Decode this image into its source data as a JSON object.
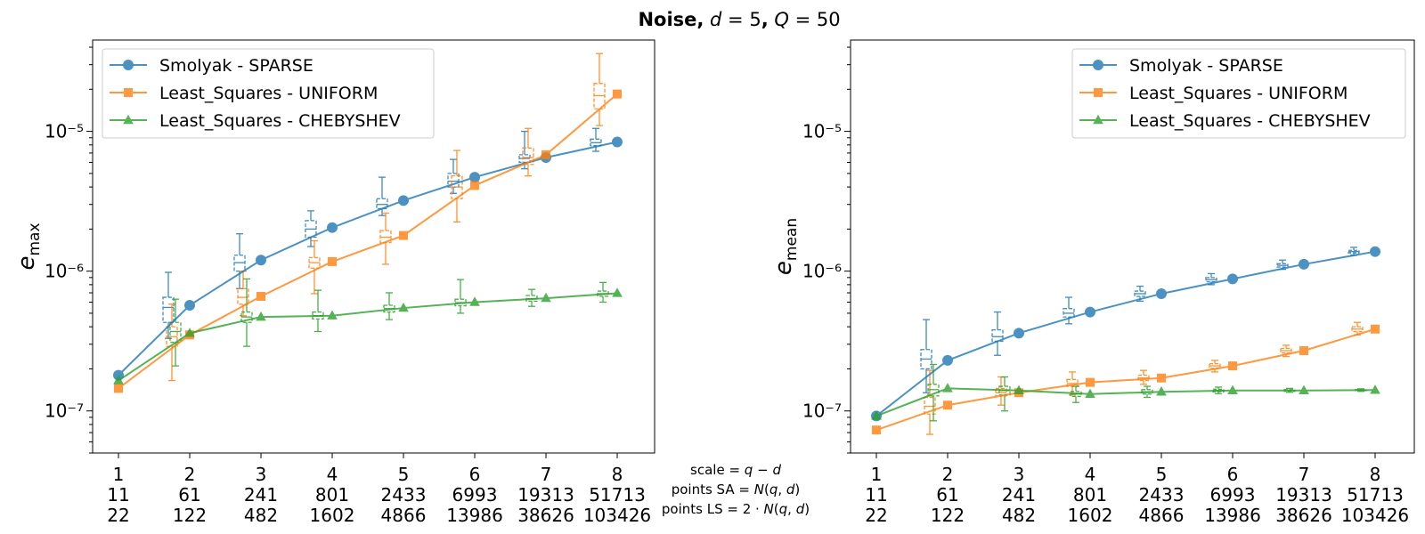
{
  "figure": {
    "title": "Noise, d = 5, Q = 50",
    "center_labels": [
      "scale = q − d",
      "points SA = N(q, d)",
      "points LS = 2 · N(q, d)"
    ],
    "x_rows": {
      "scale": [
        "1",
        "2",
        "3",
        "4",
        "5",
        "6",
        "7",
        "8"
      ],
      "points_sa": [
        "11",
        "61",
        "241",
        "801",
        "2433",
        "6993",
        "19313",
        "51713"
      ],
      "points_ls": [
        "22",
        "122",
        "482",
        "1602",
        "4866",
        "13986",
        "38626",
        "103426"
      ]
    }
  },
  "colors": {
    "sparse": "#1f77b4",
    "uniform": "#ff7f0e",
    "chebyshev": "#2ca02c"
  },
  "chart_data": [
    {
      "type": "line",
      "ylabel": "e_max",
      "y_scale": "log",
      "ylim": [
        5e-08,
        4.5e-05
      ],
      "y_ticks": [
        {
          "value": 1e-07,
          "label": "10⁻⁷"
        },
        {
          "value": 1e-06,
          "label": "10⁻⁶"
        },
        {
          "value": 1e-05,
          "label": "10⁻⁵"
        }
      ],
      "legend_position": "top-left",
      "categories": [
        "1",
        "2",
        "3",
        "4",
        "5",
        "6",
        "7",
        "8"
      ],
      "series": [
        {
          "name": "Smolyak - SPARSE",
          "color": "#1f77b4",
          "marker": "circle",
          "values": [
            1.8e-07,
            5.7e-07,
            1.2e-06,
            2.05e-06,
            3.2e-06,
            4.7e-06,
            6.5e-06,
            8.4e-06
          ],
          "box": [
            null,
            {
              "lo": 3.3e-07,
              "q1": 4.3e-07,
              "med": 5.5e-07,
              "q3": 6.5e-07,
              "hi": 9.8e-07
            },
            {
              "lo": 7.5e-07,
              "q1": 1e-06,
              "med": 1.15e-06,
              "q3": 1.3e-06,
              "hi": 1.85e-06
            },
            {
              "lo": 1.5e-06,
              "q1": 1.75e-06,
              "med": 2e-06,
              "q3": 2.3e-06,
              "hi": 2.7e-06
            },
            {
              "lo": 2.5e-06,
              "q1": 2.8e-06,
              "med": 3e-06,
              "q3": 3.3e-06,
              "hi": 4.7e-06
            },
            {
              "lo": 3.6e-06,
              "q1": 4e-06,
              "med": 4.4e-06,
              "q3": 5e-06,
              "hi": 6.3e-06
            },
            {
              "lo": 5.4e-06,
              "q1": 6e-06,
              "med": 6.4e-06,
              "q3": 6.8e-06,
              "hi": 1e-05
            },
            {
              "lo": 7.2e-06,
              "q1": 7.9e-06,
              "med": 8.3e-06,
              "q3": 8.8e-06,
              "hi": 1.05e-05
            }
          ]
        },
        {
          "name": "Least_Squares - UNIFORM",
          "color": "#ff7f0e",
          "marker": "square",
          "values": [
            1.45e-07,
            3.5e-07,
            6.6e-07,
            1.17e-06,
            1.8e-06,
            4.1e-06,
            6.8e-06,
            1.85e-05
          ],
          "box": [
            null,
            {
              "lo": 1.65e-07,
              "q1": 2.9e-07,
              "med": 3.4e-07,
              "q3": 4e-07,
              "hi": 5.8e-07
            },
            {
              "lo": 4.8e-07,
              "q1": 5.8e-07,
              "med": 6.5e-07,
              "q3": 7.5e-07,
              "hi": 1e-06
            },
            {
              "lo": 6.9e-07,
              "q1": 1.05e-06,
              "med": 1.15e-06,
              "q3": 1.25e-06,
              "hi": 1.65e-06
            },
            {
              "lo": 1.12e-06,
              "q1": 1.6e-06,
              "med": 1.75e-06,
              "q3": 1.95e-06,
              "hi": 2.6e-06
            },
            {
              "lo": 2.25e-06,
              "q1": 3.3e-06,
              "med": 4e-06,
              "q3": 4.8e-06,
              "hi": 7.3e-06
            },
            {
              "lo": 4.8e-06,
              "q1": 5.8e-06,
              "med": 6.5e-06,
              "q3": 7.6e-06,
              "hi": 1.05e-05
            },
            {
              "lo": 1.1e-05,
              "q1": 1.45e-05,
              "med": 1.8e-05,
              "q3": 2.2e-05,
              "hi": 3.6e-05
            }
          ]
        },
        {
          "name": "Least_Squares - CHEBYSHEV",
          "color": "#2ca02c",
          "marker": "triangle",
          "values": [
            1.65e-07,
            3.6e-07,
            4.7e-07,
            4.8e-07,
            5.45e-07,
            6e-07,
            6.4e-07,
            6.95e-07
          ],
          "box": [
            null,
            {
              "lo": 2.1e-07,
              "q1": 3.1e-07,
              "med": 3.7e-07,
              "q3": 4.3e-07,
              "hi": 6.3e-07
            },
            {
              "lo": 2.9e-07,
              "q1": 4.3e-07,
              "med": 4.7e-07,
              "q3": 5.1e-07,
              "hi": 8.8e-07
            },
            {
              "lo": 3.7e-07,
              "q1": 4.55e-07,
              "med": 4.8e-07,
              "q3": 5.1e-07,
              "hi": 7.3e-07
            },
            {
              "lo": 4.5e-07,
              "q1": 5.1e-07,
              "med": 5.4e-07,
              "q3": 5.7e-07,
              "hi": 7e-07
            },
            {
              "lo": 5e-07,
              "q1": 5.65e-07,
              "med": 5.95e-07,
              "q3": 6.3e-07,
              "hi": 8.7e-07
            },
            {
              "lo": 5.6e-07,
              "q1": 6.1e-07,
              "med": 6.35e-07,
              "q3": 6.7e-07,
              "hi": 7.4e-07
            },
            {
              "lo": 6e-07,
              "q1": 6.6e-07,
              "med": 6.9e-07,
              "q3": 7.2e-07,
              "hi": 8.3e-07
            }
          ]
        }
      ]
    },
    {
      "type": "line",
      "ylabel": "e_mean",
      "y_scale": "log",
      "ylim": [
        5e-08,
        4.5e-05
      ],
      "y_ticks": [
        {
          "value": 1e-07,
          "label": "10⁻⁷"
        },
        {
          "value": 1e-06,
          "label": "10⁻⁶"
        },
        {
          "value": 1e-05,
          "label": "10⁻⁵"
        }
      ],
      "legend_position": "top-right",
      "categories": [
        "1",
        "2",
        "3",
        "4",
        "5",
        "6",
        "7",
        "8"
      ],
      "series": [
        {
          "name": "Smolyak - SPARSE",
          "color": "#1f77b4",
          "marker": "circle",
          "values": [
            9.2e-08,
            2.3e-07,
            3.6e-07,
            5.1e-07,
            6.9e-07,
            8.8e-07,
            1.12e-06,
            1.38e-06
          ],
          "box": [
            null,
            {
              "lo": 1.35e-07,
              "q1": 2e-07,
              "med": 2.35e-07,
              "q3": 2.75e-07,
              "hi": 4.5e-07
            },
            {
              "lo": 2.5e-07,
              "q1": 3.15e-07,
              "med": 3.4e-07,
              "q3": 3.8e-07,
              "hi": 5.1e-07
            },
            {
              "lo": 4.2e-07,
              "q1": 4.7e-07,
              "med": 5e-07,
              "q3": 5.4e-07,
              "hi": 6.5e-07
            },
            {
              "lo": 6.1e-07,
              "q1": 6.6e-07,
              "med": 6.9e-07,
              "q3": 7.2e-07,
              "hi": 7.8e-07
            },
            {
              "lo": 8e-07,
              "q1": 8.4e-07,
              "med": 8.7e-07,
              "q3": 9e-07,
              "hi": 9.6e-07
            },
            {
              "lo": 1.03e-06,
              "q1": 1.07e-06,
              "med": 1.1e-06,
              "q3": 1.13e-06,
              "hi": 1.2e-06
            },
            {
              "lo": 1.3e-06,
              "q1": 1.35e-06,
              "med": 1.38e-06,
              "q3": 1.41e-06,
              "hi": 1.48e-06
            }
          ]
        },
        {
          "name": "Least_Squares - UNIFORM",
          "color": "#ff7f0e",
          "marker": "square",
          "values": [
            7.3e-08,
            1.1e-07,
            1.35e-07,
            1.6e-07,
            1.72e-07,
            2.1e-07,
            2.7e-07,
            3.85e-07
          ],
          "box": [
            null,
            {
              "lo": 6.8e-08,
              "q1": 9.5e-08,
              "med": 1.08e-07,
              "q3": 1.25e-07,
              "hi": 1.95e-07
            },
            {
              "lo": 1.1e-07,
              "q1": 1.28e-07,
              "med": 1.35e-07,
              "q3": 1.45e-07,
              "hi": 1.75e-07
            },
            {
              "lo": 1.3e-07,
              "q1": 1.5e-07,
              "med": 1.57e-07,
              "q3": 1.68e-07,
              "hi": 1.9e-07
            },
            {
              "lo": 1.55e-07,
              "q1": 1.65e-07,
              "med": 1.72e-07,
              "q3": 1.8e-07,
              "hi": 1.95e-07
            },
            {
              "lo": 1.9e-07,
              "q1": 2.02e-07,
              "med": 2.1e-07,
              "q3": 2.18e-07,
              "hi": 2.3e-07
            },
            {
              "lo": 2.45e-07,
              "q1": 2.6e-07,
              "med": 2.7e-07,
              "q3": 2.8e-07,
              "hi": 2.95e-07
            },
            {
              "lo": 3.5e-07,
              "q1": 3.7e-07,
              "med": 3.85e-07,
              "q3": 4e-07,
              "hi": 4.3e-07
            }
          ]
        },
        {
          "name": "Least_Squares - CHEBYSHEV",
          "color": "#2ca02c",
          "marker": "triangle",
          "values": [
            9.2e-08,
            1.45e-07,
            1.4e-07,
            1.32e-07,
            1.37e-07,
            1.4e-07,
            1.4e-07,
            1.41e-07
          ],
          "box": [
            null,
            {
              "lo": 8.5e-08,
              "q1": 1.28e-07,
              "med": 1.42e-07,
              "q3": 1.55e-07,
              "hi": 2.15e-07
            },
            {
              "lo": 1e-07,
              "q1": 1.3e-07,
              "med": 1.4e-07,
              "q3": 1.5e-07,
              "hi": 1.75e-07
            },
            {
              "lo": 1.15e-07,
              "q1": 1.27e-07,
              "med": 1.32e-07,
              "q3": 1.38e-07,
              "hi": 1.5e-07
            },
            {
              "lo": 1.25e-07,
              "q1": 1.32e-07,
              "med": 1.37e-07,
              "q3": 1.42e-07,
              "hi": 1.5e-07
            },
            {
              "lo": 1.33e-07,
              "q1": 1.37e-07,
              "med": 1.4e-07,
              "q3": 1.43e-07,
              "hi": 1.48e-07
            },
            {
              "lo": 1.36e-07,
              "q1": 1.38e-07,
              "med": 1.4e-07,
              "q3": 1.42e-07,
              "hi": 1.45e-07
            },
            {
              "lo": 1.38e-07,
              "q1": 1.4e-07,
              "med": 1.41e-07,
              "q3": 1.42e-07,
              "hi": 1.44e-07
            }
          ]
        }
      ]
    }
  ]
}
